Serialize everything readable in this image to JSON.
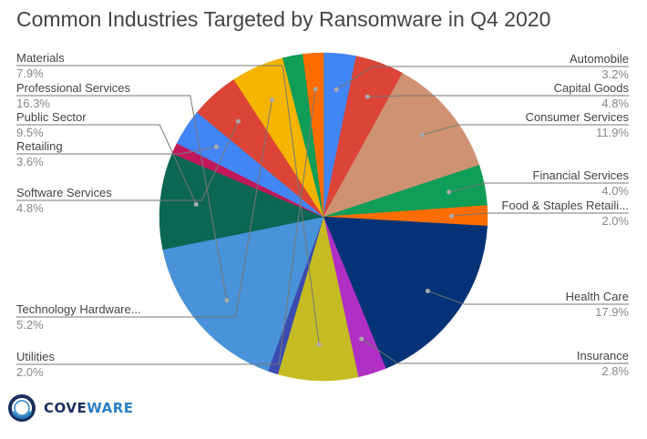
{
  "logo": {
    "text_a": "COVE",
    "text_b": "WARE"
  },
  "chart_data": {
    "type": "pie",
    "title": "Common Industries Targeted by Ransomware in Q4 2020",
    "start": "top",
    "direction": "clockwise",
    "slices": [
      {
        "name": "Automobile",
        "value": 3.2,
        "label": "3.2%",
        "color": "#4285F4",
        "side": "right"
      },
      {
        "name": "Capital Goods",
        "value": 4.8,
        "label": "4.8%",
        "color": "#DB4437",
        "side": "right"
      },
      {
        "name": "Consumer Services",
        "value": 11.9,
        "label": "11.9%",
        "color": "#CF9273",
        "side": "right"
      },
      {
        "name": "Financial Services",
        "value": 4.0,
        "label": "4.0%",
        "color": "#0F9D58",
        "side": "right"
      },
      {
        "name": "Food & Staples Retaili...",
        "value": 2.0,
        "label": "2.0%",
        "color": "#FF6D00",
        "side": "right"
      },
      {
        "name": "Health Care",
        "value": 17.9,
        "label": "17.9%",
        "color": "#033376",
        "side": "right"
      },
      {
        "name": "Insurance",
        "value": 2.8,
        "label": "2.8%",
        "color": "#B02FC4",
        "side": "right"
      },
      {
        "name": "Materials",
        "value": 7.9,
        "label": "7.9%",
        "color": "#C4BC22",
        "side": "left"
      },
      {
        "name": "",
        "value": 1.0,
        "label": "",
        "color": "#3B4BB0",
        "side": ""
      },
      {
        "name": "Professional Services",
        "value": 16.3,
        "label": "16.3%",
        "color": "#4A92D9",
        "side": "left"
      },
      {
        "name": "Public Sector",
        "value": 9.5,
        "label": "9.5%",
        "color": "#0B6653",
        "side": "left"
      },
      {
        "name": "",
        "value": 1.1,
        "label": "",
        "color": "#C2185B",
        "side": ""
      },
      {
        "name": "Retailing",
        "value": 3.6,
        "label": "3.6%",
        "color": "#4285F4",
        "side": "left"
      },
      {
        "name": "Software Services",
        "value": 4.8,
        "label": "4.8%",
        "color": "#DB4437",
        "side": "left"
      },
      {
        "name": "Technology Hardware...",
        "value": 5.2,
        "label": "5.2%",
        "color": "#F4B400",
        "side": "left"
      },
      {
        "name": "",
        "value": 2.0,
        "label": "",
        "color": "#0F9D58",
        "side": ""
      },
      {
        "name": "Utilities",
        "value": 2.0,
        "label": "2.0%",
        "color": "#FF6D00",
        "side": "left"
      }
    ]
  }
}
